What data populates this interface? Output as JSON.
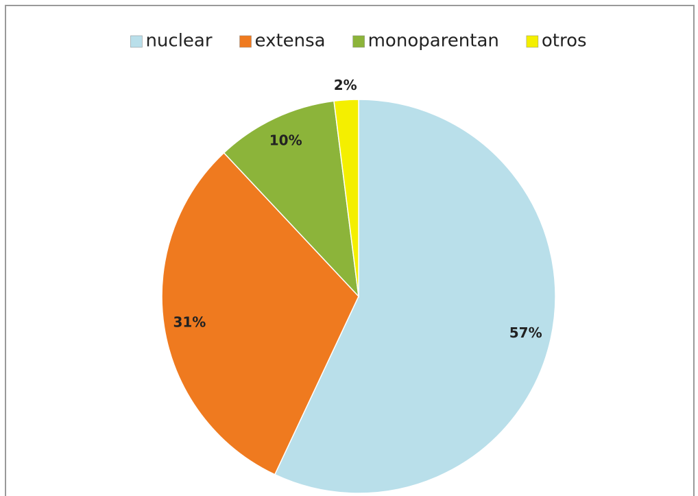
{
  "chart_data": {
    "type": "pie",
    "categories": [
      "nuclear",
      "extensa",
      "monoparentan",
      "otros"
    ],
    "values": [
      57,
      31,
      10,
      2
    ],
    "value_labels": [
      "57%",
      "31%",
      "10%",
      "2%"
    ],
    "colors": [
      "#b9dfea",
      "#ef7a1f",
      "#8cb43a",
      "#f4ef00"
    ],
    "legend": "top"
  }
}
